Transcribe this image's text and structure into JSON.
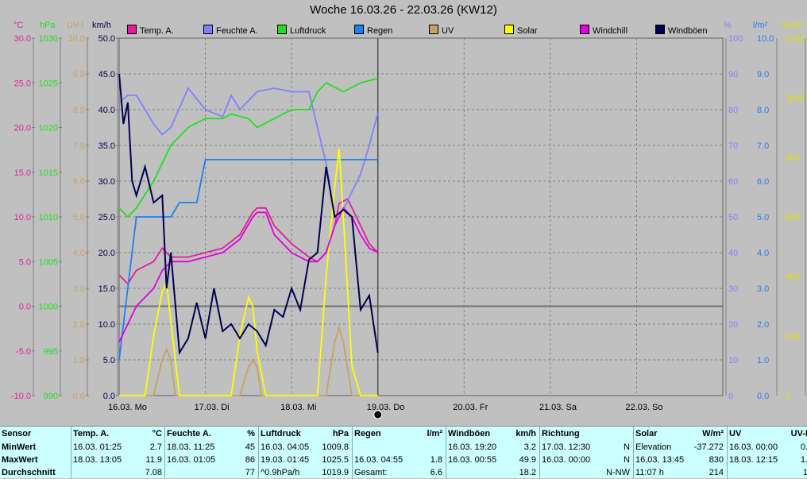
{
  "title": "Woche 16.03.26 - 22.03.26 (KW12)",
  "units": {
    "temp": "°C",
    "press": "hPa",
    "uv": "UV-I",
    "wind": "km/h",
    "hum": "%",
    "rain": "l/m²",
    "solar": "W/m²"
  },
  "legend": [
    {
      "label": "Temp. A.",
      "color": "#e0209a"
    },
    {
      "label": "Feuchte A.",
      "color": "#8080ff"
    },
    {
      "label": "Luftdruck",
      "color": "#20e020"
    },
    {
      "label": "Regen",
      "color": "#1e7ff0"
    },
    {
      "label": "UV",
      "color": "#c8a064"
    },
    {
      "label": "Solar",
      "color": "#ffff00"
    },
    {
      "label": "Windchill",
      "color": "#e000e0"
    },
    {
      "label": "Windböen",
      "color": "#000050"
    }
  ],
  "axes": {
    "temp": [
      "30.0",
      "25.0",
      "20.0",
      "15.0",
      "10.0",
      "5.0",
      "0.0",
      "-5.0",
      "-10.0"
    ],
    "press": [
      "1030",
      "1025",
      "1020",
      "1015",
      "1010",
      "1005",
      "1000",
      "995",
      "990"
    ],
    "uv": [
      "10.0",
      "9.0",
      "8.0",
      "7.0",
      "6.0",
      "5.0",
      "4.0",
      "3.0",
      "2.0",
      "1.0",
      "0.0"
    ],
    "wind": [
      "50.0",
      "45.0",
      "40.0",
      "35.0",
      "30.0",
      "25.0",
      "20.0",
      "15.0",
      "10.0",
      "5.0",
      "0.0"
    ],
    "hum": [
      "100",
      "90",
      "80",
      "70",
      "60",
      "50",
      "40",
      "30",
      "20",
      "10",
      "0"
    ],
    "rain": [
      "10.0",
      "9.0",
      "8.0",
      "7.0",
      "6.0",
      "5.0",
      "4.0",
      "3.0",
      "2.0",
      "1.0",
      "0.0"
    ],
    "solar": [
      "1200",
      "1000",
      "800",
      "600",
      "400",
      "200",
      "0"
    ]
  },
  "x_labels": [
    "16.03.  Mo",
    "17.03.  Di",
    "18.03.  Mi",
    "19.03.  Do",
    "20.03.  Fr",
    "21.03.  Sa",
    "22.03.  So"
  ],
  "chart_data": {
    "type": "line",
    "x_unit": "days since 16.03. 00:00",
    "series": [
      {
        "name": "Temp. A.",
        "axis": "temp",
        "points": [
          [
            0,
            3.5
          ],
          [
            0.1,
            2.5
          ],
          [
            0.2,
            4
          ],
          [
            0.4,
            5
          ],
          [
            0.5,
            6.5
          ],
          [
            0.6,
            5.5
          ],
          [
            0.8,
            5.5
          ],
          [
            1,
            6
          ],
          [
            1.2,
            6.5
          ],
          [
            1.4,
            8
          ],
          [
            1.55,
            10.5
          ],
          [
            1.6,
            11
          ],
          [
            1.7,
            11
          ],
          [
            1.8,
            9
          ],
          [
            2,
            7
          ],
          [
            2.2,
            5.5
          ],
          [
            2.3,
            5
          ],
          [
            2.4,
            6
          ],
          [
            2.5,
            9
          ],
          [
            2.55,
            11.5
          ],
          [
            2.65,
            12
          ],
          [
            2.75,
            10
          ],
          [
            2.9,
            7
          ],
          [
            3,
            6
          ]
        ]
      },
      {
        "name": "Feuchte A.",
        "axis": "hum",
        "points": [
          [
            0,
            82
          ],
          [
            0.1,
            84
          ],
          [
            0.2,
            84
          ],
          [
            0.3,
            80
          ],
          [
            0.4,
            76
          ],
          [
            0.5,
            73
          ],
          [
            0.6,
            75
          ],
          [
            0.8,
            86
          ],
          [
            1,
            80
          ],
          [
            1.2,
            78
          ],
          [
            1.3,
            84
          ],
          [
            1.4,
            80
          ],
          [
            1.6,
            85
          ],
          [
            1.8,
            86
          ],
          [
            2,
            85
          ],
          [
            2.2,
            85
          ],
          [
            2.3,
            75
          ],
          [
            2.4,
            65
          ],
          [
            2.5,
            50
          ],
          [
            2.6,
            52
          ],
          [
            2.7,
            57
          ],
          [
            2.8,
            62
          ],
          [
            2.9,
            70
          ],
          [
            3,
            79
          ]
        ]
      },
      {
        "name": "Luftdruck",
        "axis": "press",
        "points": [
          [
            0,
            1011
          ],
          [
            0.1,
            1010
          ],
          [
            0.2,
            1011
          ],
          [
            0.4,
            1014
          ],
          [
            0.5,
            1016
          ],
          [
            0.6,
            1018
          ],
          [
            0.8,
            1020
          ],
          [
            1,
            1021
          ],
          [
            1.2,
            1021
          ],
          [
            1.3,
            1021.5
          ],
          [
            1.5,
            1021
          ],
          [
            1.6,
            1020
          ],
          [
            1.8,
            1021
          ],
          [
            2,
            1022
          ],
          [
            2.2,
            1022
          ],
          [
            2.3,
            1024
          ],
          [
            2.4,
            1025
          ],
          [
            2.6,
            1024
          ],
          [
            2.8,
            1025
          ],
          [
            3,
            1025.5
          ]
        ]
      },
      {
        "name": "Regen",
        "axis": "rain",
        "points": [
          [
            0,
            1
          ],
          [
            0.2,
            5
          ],
          [
            0.6,
            5
          ],
          [
            0.7,
            5.4
          ],
          [
            0.9,
            5.4
          ],
          [
            1,
            6.6
          ],
          [
            3,
            6.6
          ]
        ]
      },
      {
        "name": "UV",
        "axis": "uv",
        "points": [
          [
            0,
            0
          ],
          [
            0.4,
            0
          ],
          [
            0.5,
            1
          ],
          [
            0.55,
            1.3
          ],
          [
            0.6,
            1
          ],
          [
            0.65,
            0
          ],
          [
            1.4,
            0
          ],
          [
            1.5,
            0.8
          ],
          [
            1.55,
            1
          ],
          [
            1.6,
            0.8
          ],
          [
            1.65,
            0
          ],
          [
            2.4,
            0
          ],
          [
            2.5,
            1.5
          ],
          [
            2.55,
            1.9
          ],
          [
            2.6,
            1.5
          ],
          [
            2.7,
            0
          ],
          [
            3,
            0
          ]
        ]
      },
      {
        "name": "Solar",
        "axis": "solar",
        "points": [
          [
            0,
            0
          ],
          [
            0.3,
            0
          ],
          [
            0.4,
            200
          ],
          [
            0.5,
            350
          ],
          [
            0.55,
            380
          ],
          [
            0.6,
            250
          ],
          [
            0.7,
            0
          ],
          [
            1.3,
            0
          ],
          [
            1.4,
            200
          ],
          [
            1.5,
            330
          ],
          [
            1.55,
            300
          ],
          [
            1.6,
            150
          ],
          [
            1.7,
            0
          ],
          [
            2.3,
            0
          ],
          [
            2.4,
            400
          ],
          [
            2.5,
            700
          ],
          [
            2.55,
            830
          ],
          [
            2.6,
            600
          ],
          [
            2.7,
            100
          ],
          [
            2.8,
            0
          ],
          [
            3,
            0
          ]
        ]
      },
      {
        "name": "Windchill",
        "axis": "temp",
        "points": [
          [
            0,
            -4
          ],
          [
            0.1,
            -2
          ],
          [
            0.2,
            0
          ],
          [
            0.4,
            2
          ],
          [
            0.5,
            4
          ],
          [
            0.6,
            5
          ],
          [
            0.8,
            5
          ],
          [
            1,
            5.5
          ],
          [
            1.2,
            6
          ],
          [
            1.4,
            7.5
          ],
          [
            1.55,
            10
          ],
          [
            1.6,
            10.5
          ],
          [
            1.7,
            10.5
          ],
          [
            1.8,
            8
          ],
          [
            2,
            6
          ],
          [
            2.2,
            5
          ],
          [
            2.3,
            5
          ],
          [
            2.4,
            6
          ],
          [
            2.5,
            9
          ],
          [
            2.6,
            11
          ],
          [
            2.7,
            10
          ],
          [
            2.8,
            8
          ],
          [
            2.9,
            6.5
          ],
          [
            3,
            6
          ]
        ]
      },
      {
        "name": "Windböen",
        "axis": "wind",
        "points": [
          [
            0,
            45
          ],
          [
            0.05,
            38
          ],
          [
            0.1,
            41
          ],
          [
            0.15,
            30
          ],
          [
            0.2,
            28
          ],
          [
            0.3,
            32
          ],
          [
            0.4,
            27
          ],
          [
            0.5,
            28
          ],
          [
            0.55,
            15
          ],
          [
            0.6,
            20
          ],
          [
            0.7,
            6
          ],
          [
            0.8,
            8
          ],
          [
            0.9,
            13
          ],
          [
            1,
            8
          ],
          [
            1.1,
            15
          ],
          [
            1.2,
            9
          ],
          [
            1.3,
            10
          ],
          [
            1.4,
            8
          ],
          [
            1.5,
            10
          ],
          [
            1.6,
            9
          ],
          [
            1.7,
            7
          ],
          [
            1.8,
            12
          ],
          [
            1.9,
            11
          ],
          [
            2,
            15
          ],
          [
            2.1,
            12
          ],
          [
            2.2,
            19
          ],
          [
            2.3,
            20
          ],
          [
            2.4,
            32
          ],
          [
            2.5,
            25
          ],
          [
            2.6,
            26
          ],
          [
            2.7,
            25
          ],
          [
            2.8,
            12
          ],
          [
            2.9,
            14
          ],
          [
            3,
            6
          ]
        ]
      }
    ],
    "ylim": {
      "temp": [
        -10,
        30
      ],
      "press": [
        990,
        1030
      ],
      "uv": [
        0,
        10
      ],
      "wind": [
        0,
        50
      ],
      "hum": [
        0,
        100
      ],
      "rain": [
        0,
        10
      ],
      "solar": [
        0,
        1200
      ]
    }
  },
  "stats": {
    "sensor": {
      "hdr": "Sensor",
      "rows": [
        "MinWert",
        "MaxWert",
        "Durchschnitt"
      ]
    },
    "temp": {
      "hdr": "Temp. A.",
      "unit": "°C",
      "rows": [
        [
          "16.03.  01:25",
          "2.7"
        ],
        [
          "18.03.  13:05",
          "11.9"
        ],
        [
          "",
          "7.08"
        ]
      ]
    },
    "hum": {
      "hdr": "Feuchte A.",
      "unit": "%",
      "rows": [
        [
          "18.03.  11:25",
          "45"
        ],
        [
          "16.03.  01:05",
          "86"
        ],
        [
          "",
          "77"
        ]
      ]
    },
    "press": {
      "hdr": "Luftdruck",
      "unit": "hPa",
      "rows": [
        [
          "16.03.  04:05",
          "1009.8"
        ],
        [
          "19.03.  01:45",
          "1025.5"
        ],
        [
          "^0.9hPa/h",
          "1019.9"
        ]
      ]
    },
    "rain": {
      "hdr": "Regen",
      "unit": "l/m²",
      "rows": [
        [
          "",
          ""
        ],
        [
          "16.03.  04:55",
          "1.8"
        ],
        [
          "Gesamt:",
          "6.6"
        ]
      ]
    },
    "wind": {
      "hdr": "Windböen",
      "unit": "km/h",
      "rows": [
        [
          "16.03.  19:20",
          "3.2"
        ],
        [
          "16.03.  00:55",
          "49.9"
        ],
        [
          "",
          "18.2"
        ]
      ]
    },
    "dir": {
      "hdr": "Richtung",
      "unit": "",
      "rows": [
        [
          "17.03.  12:30",
          "N"
        ],
        [
          "16.03.  00:00",
          "N"
        ],
        [
          "",
          "N-NW"
        ]
      ]
    },
    "solar": {
      "hdr": "Solar",
      "unit": "W/m²",
      "rows": [
        [
          "Elevation",
          "-37.272"
        ],
        [
          "16.03.  13:45",
          "830"
        ],
        [
          "11:07 h",
          "214"
        ]
      ]
    },
    "uv": {
      "hdr": "UV",
      "unit": "UV-I",
      "rows": [
        [
          "16.03.  00:00",
          "0."
        ],
        [
          "18.03.  12:15",
          "1."
        ],
        [
          "",
          "1"
        ]
      ]
    }
  }
}
